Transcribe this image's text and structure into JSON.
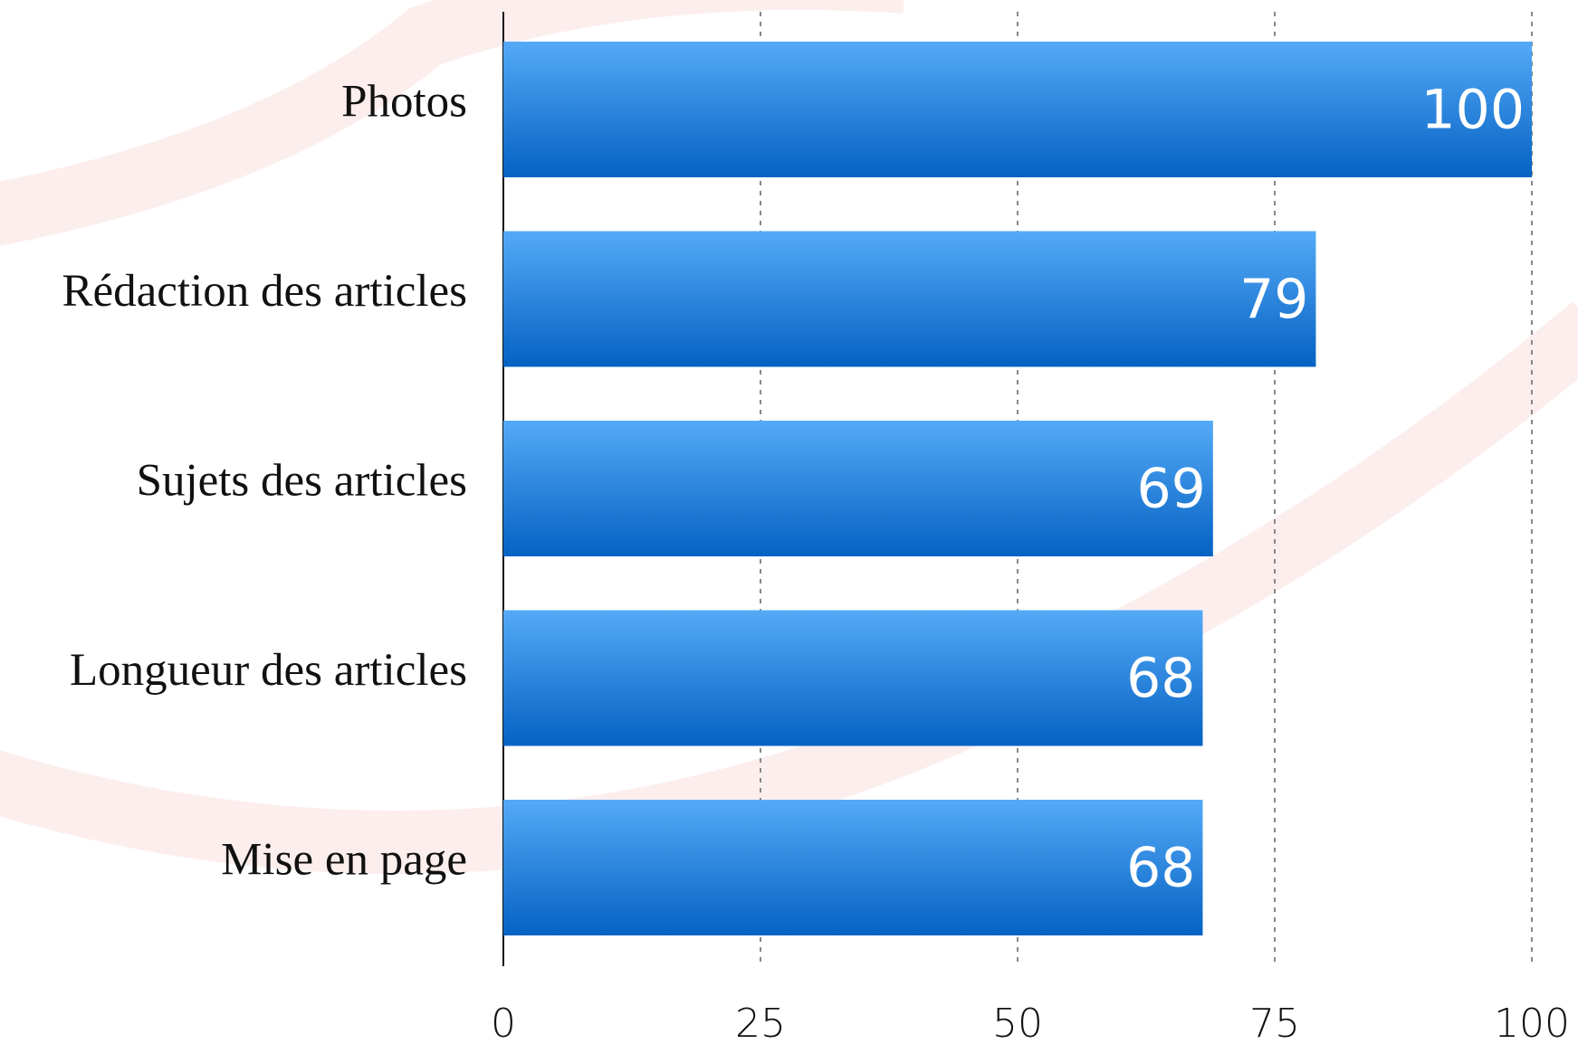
{
  "chart_data": {
    "type": "bar",
    "orientation": "horizontal",
    "categories": [
      "Photos",
      "Rédaction des articles",
      "Sujets des articles",
      "Longueur des articles",
      "Mise en page"
    ],
    "values": [
      100,
      79,
      69,
      68,
      68
    ],
    "color": "#1f7fe0",
    "xlim": [
      0,
      100
    ],
    "xticks": [
      0,
      25,
      50,
      75,
      100
    ],
    "grid": true
  }
}
